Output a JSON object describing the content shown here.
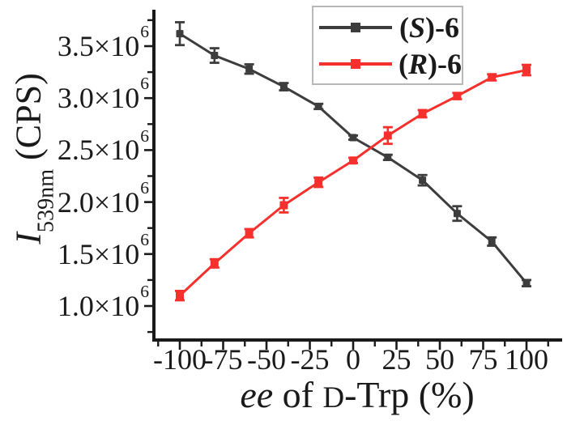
{
  "chart_data": {
    "type": "line",
    "title": "",
    "xlabel": "ee of D-Trp (%)",
    "ylabel": "I539nm (CPS)",
    "xlabel_parts": {
      "italic": "ee",
      "mid": " of ",
      "smallcap": "D",
      "rest": "-Trp (%)"
    },
    "ylabel_parts": {
      "italic": "I",
      "sub": "539nm",
      "rest": " (CPS)"
    },
    "grid": false,
    "legend_position": "top-right",
    "axis_color": "#1a1a1a",
    "xlim": [
      -116,
      120
    ],
    "ylim": [
      680000,
      3850000
    ],
    "x": [
      -100,
      -80,
      -60,
      -40,
      -20,
      0,
      20,
      40,
      60,
      80,
      100
    ],
    "series": [
      {
        "name": "(S)-6",
        "name_parts": {
          "open": "(",
          "letter": "S",
          "close": ")-6"
        },
        "color": "#3d3d3d",
        "marker": "square",
        "values": [
          3620000,
          3410000,
          3280000,
          3110000,
          2920000,
          2620000,
          2430000,
          2210000,
          1890000,
          1620000,
          1220000
        ],
        "errors": [
          110000,
          70000,
          45000,
          35000,
          25000,
          20000,
          25000,
          50000,
          70000,
          40000,
          30000
        ]
      },
      {
        "name": "(R)-6",
        "name_parts": {
          "open": "(",
          "letter": "R",
          "close": ")-6"
        },
        "color": "#f6302c",
        "marker": "square",
        "values": [
          1100000,
          1410000,
          1700000,
          1970000,
          2190000,
          2400000,
          2640000,
          2850000,
          3020000,
          3200000,
          3270000
        ],
        "errors": [
          45000,
          40000,
          40000,
          70000,
          45000,
          25000,
          80000,
          35000,
          30000,
          30000,
          50000
        ]
      }
    ],
    "y_ticks": [
      {
        "value": 1000000,
        "mantissa": "1.0×10",
        "exp": "6"
      },
      {
        "value": 1500000,
        "mantissa": "1.5×10",
        "exp": "6"
      },
      {
        "value": 2000000,
        "mantissa": "2.0×10",
        "exp": "6"
      },
      {
        "value": 2500000,
        "mantissa": "2.5×10",
        "exp": "6"
      },
      {
        "value": 3000000,
        "mantissa": "3.0×10",
        "exp": "6"
      },
      {
        "value": 3500000,
        "mantissa": "3.5×10",
        "exp": "6"
      }
    ],
    "y_minor_ticks": [
      750000,
      1250000,
      1750000,
      2250000,
      2750000,
      3250000,
      3750000
    ],
    "x_ticks": [
      {
        "value": -100,
        "label": "-100"
      },
      {
        "value": -75,
        "label": "-75"
      },
      {
        "value": -50,
        "label": "-50"
      },
      {
        "value": -25,
        "label": "-25"
      },
      {
        "value": 0,
        "label": "0"
      },
      {
        "value": 25,
        "label": "25"
      },
      {
        "value": 50,
        "label": "50"
      },
      {
        "value": 75,
        "label": "75"
      },
      {
        "value": 100,
        "label": "100"
      }
    ],
    "x_minor_ticks": [
      -112.5,
      -87.5,
      -62.5,
      -37.5,
      -12.5,
      12.5,
      37.5,
      62.5,
      87.5,
      112.5
    ]
  }
}
